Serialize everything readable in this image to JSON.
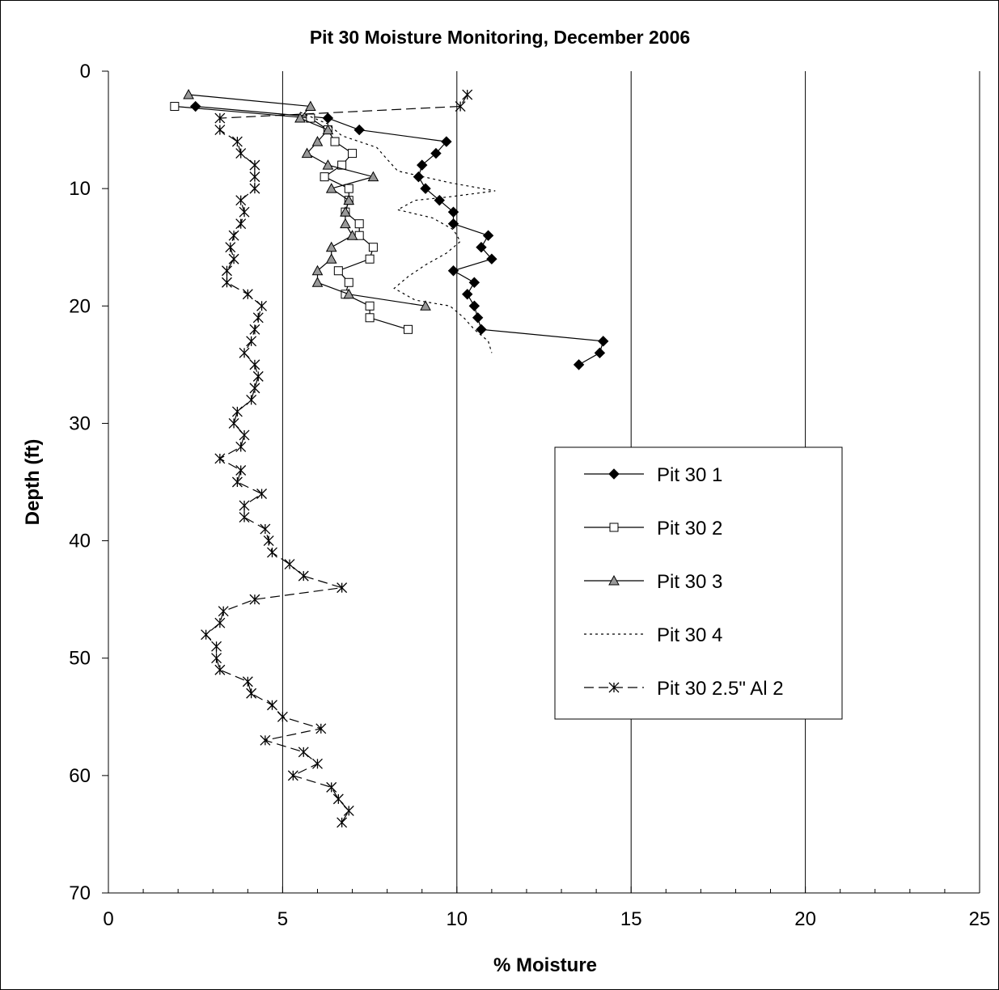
{
  "chart_data": {
    "type": "line",
    "title": "Pit 30 Moisture Monitoring, December 2006",
    "xlabel": "% Moisture",
    "ylabel": "Depth (ft)",
    "xlim": [
      0,
      25
    ],
    "ylim": [
      0,
      70
    ],
    "y_inverted": true,
    "x_ticks": [
      "0",
      "5",
      "10",
      "15",
      "20",
      "25"
    ],
    "y_ticks": [
      "0",
      "10",
      "20",
      "30",
      "40",
      "50",
      "60",
      "70"
    ],
    "grid": "vertical major gridlines",
    "legend_position": "right-center",
    "series": [
      {
        "name": "Pit 30 1",
        "marker": "diamond-filled",
        "line": "solid",
        "points": [
          [
            2.5,
            3
          ],
          [
            6.3,
            4
          ],
          [
            7.2,
            5
          ],
          [
            9.7,
            6
          ],
          [
            9.4,
            7
          ],
          [
            9.0,
            8
          ],
          [
            8.9,
            9
          ],
          [
            9.1,
            10
          ],
          [
            9.5,
            11
          ],
          [
            9.9,
            12
          ],
          [
            9.9,
            13
          ],
          [
            10.9,
            14
          ],
          [
            10.7,
            15
          ],
          [
            11.0,
            16
          ],
          [
            9.9,
            17
          ],
          [
            10.5,
            18
          ],
          [
            10.3,
            19
          ],
          [
            10.5,
            20
          ],
          [
            10.6,
            21
          ],
          [
            10.7,
            22
          ],
          [
            14.2,
            23
          ],
          [
            14.1,
            24
          ],
          [
            13.5,
            25
          ]
        ]
      },
      {
        "name": "Pit 30 2",
        "marker": "square-open",
        "line": "solid",
        "points": [
          [
            1.9,
            3
          ],
          [
            5.8,
            4
          ],
          [
            6.3,
            5
          ],
          [
            6.5,
            6
          ],
          [
            7.0,
            7
          ],
          [
            6.7,
            8
          ],
          [
            6.2,
            9
          ],
          [
            6.9,
            10
          ],
          [
            6.9,
            11
          ],
          [
            6.8,
            12
          ],
          [
            7.2,
            13
          ],
          [
            7.2,
            14
          ],
          [
            7.6,
            15
          ],
          [
            7.5,
            16
          ],
          [
            6.6,
            17
          ],
          [
            6.9,
            18
          ],
          [
            6.8,
            19
          ],
          [
            7.5,
            20
          ],
          [
            7.5,
            21
          ],
          [
            8.6,
            22
          ]
        ]
      },
      {
        "name": "Pit 30 3",
        "marker": "triangle-gray",
        "line": "solid",
        "points": [
          [
            2.3,
            2
          ],
          [
            5.8,
            3
          ],
          [
            5.5,
            4
          ],
          [
            6.3,
            5
          ],
          [
            6.0,
            6
          ],
          [
            5.7,
            7
          ],
          [
            6.3,
            8
          ],
          [
            7.6,
            9
          ],
          [
            6.4,
            10
          ],
          [
            6.9,
            11
          ],
          [
            6.8,
            12
          ],
          [
            6.8,
            13
          ],
          [
            7.0,
            14
          ],
          [
            6.4,
            15
          ],
          [
            6.4,
            16
          ],
          [
            6.0,
            17
          ],
          [
            6.0,
            18
          ],
          [
            6.9,
            19
          ],
          [
            9.1,
            20
          ]
        ]
      },
      {
        "name": "Pit 30 4",
        "marker": "none",
        "line": "dotted",
        "points": [
          [
            5.5,
            3.5
          ],
          [
            6.3,
            4.5
          ],
          [
            6.7,
            5.5
          ],
          [
            7.7,
            6.5
          ],
          [
            8.0,
            7.5
          ],
          [
            8.3,
            8.5
          ],
          [
            9.8,
            9.5
          ],
          [
            11.1,
            10.2
          ],
          [
            9.8,
            10.7
          ],
          [
            8.8,
            11
          ],
          [
            8.3,
            11.8
          ],
          [
            9.3,
            12.5
          ],
          [
            9.9,
            13.5
          ],
          [
            10.1,
            14.5
          ],
          [
            9.7,
            15.5
          ],
          [
            9.1,
            16.5
          ],
          [
            8.6,
            17.5
          ],
          [
            8.2,
            18.5
          ],
          [
            8.8,
            19.5
          ],
          [
            9.8,
            20
          ],
          [
            10.2,
            21
          ],
          [
            10.5,
            22
          ],
          [
            10.9,
            23
          ],
          [
            11.0,
            24
          ]
        ]
      },
      {
        "name": "Pit 30 2.5\" Al 2",
        "marker": "asterisk",
        "line": "dashed",
        "points": [
          [
            10.3,
            2
          ],
          [
            10.1,
            3
          ],
          [
            3.2,
            4
          ],
          [
            3.2,
            5
          ],
          [
            3.7,
            6
          ],
          [
            3.8,
            7
          ],
          [
            4.2,
            8
          ],
          [
            4.2,
            9
          ],
          [
            4.2,
            10
          ],
          [
            3.8,
            11
          ],
          [
            3.9,
            12
          ],
          [
            3.8,
            13
          ],
          [
            3.6,
            14
          ],
          [
            3.5,
            15
          ],
          [
            3.6,
            16
          ],
          [
            3.4,
            17
          ],
          [
            3.4,
            18
          ],
          [
            4.0,
            19
          ],
          [
            4.4,
            20
          ],
          [
            4.3,
            21
          ],
          [
            4.2,
            22
          ],
          [
            4.1,
            23
          ],
          [
            3.9,
            24
          ],
          [
            4.2,
            25
          ],
          [
            4.3,
            26
          ],
          [
            4.2,
            27
          ],
          [
            4.1,
            28
          ],
          [
            3.7,
            29
          ],
          [
            3.6,
            30
          ],
          [
            3.9,
            31
          ],
          [
            3.8,
            32
          ],
          [
            3.2,
            33
          ],
          [
            3.8,
            34
          ],
          [
            3.7,
            35
          ],
          [
            4.4,
            36
          ],
          [
            3.9,
            37
          ],
          [
            3.9,
            38
          ],
          [
            4.5,
            39
          ],
          [
            4.6,
            40
          ],
          [
            4.7,
            41
          ],
          [
            5.2,
            42
          ],
          [
            5.6,
            43
          ],
          [
            6.7,
            44
          ],
          [
            4.2,
            45
          ],
          [
            3.3,
            46
          ],
          [
            3.2,
            47
          ],
          [
            2.8,
            48
          ],
          [
            3.1,
            49
          ],
          [
            3.1,
            50
          ],
          [
            3.2,
            51
          ],
          [
            4.0,
            52
          ],
          [
            4.1,
            53
          ],
          [
            4.7,
            54
          ],
          [
            5.0,
            55
          ],
          [
            6.1,
            56
          ],
          [
            4.5,
            57
          ],
          [
            5.6,
            58
          ],
          [
            6.0,
            59
          ],
          [
            5.3,
            60
          ],
          [
            6.4,
            61
          ],
          [
            6.6,
            62
          ],
          [
            6.9,
            63
          ],
          [
            6.7,
            64
          ]
        ]
      }
    ]
  }
}
